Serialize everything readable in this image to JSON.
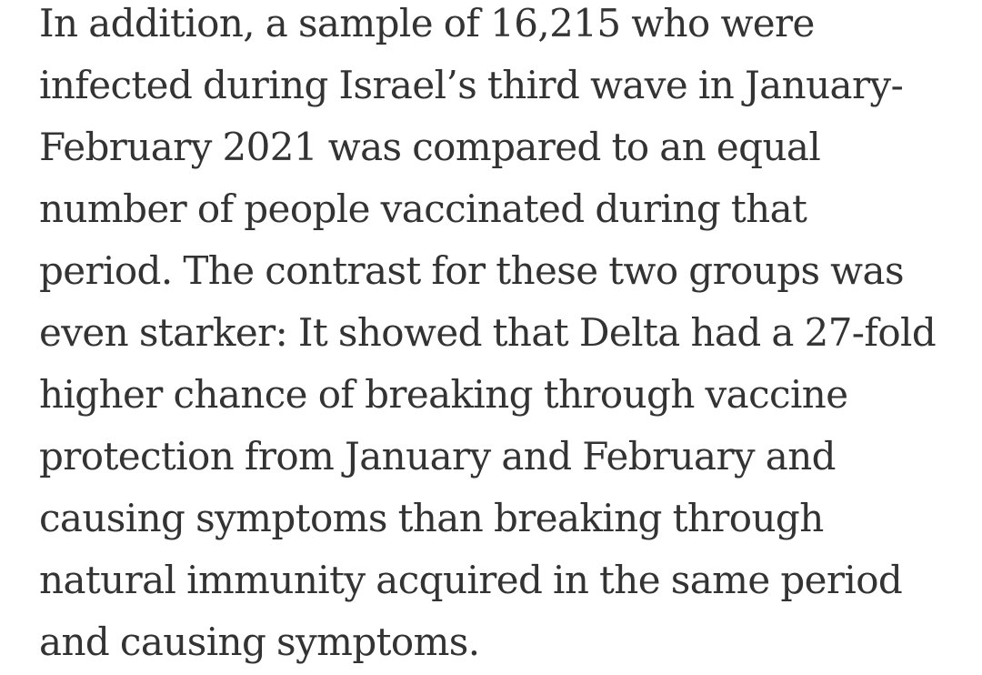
{
  "article": {
    "lines": [
      "In addition, a sample of 16,215 who were",
      "infected during Israel’s third wave in January-",
      "February 2021 was compared to an equal",
      "number of people vaccinated during that",
      "period. The contrast for these two groups was",
      "even starker: It showed that Delta had a 27-fold",
      "higher chance of breaking through vaccine",
      "protection from January and February and",
      "causing symptoms than breaking through",
      "natural immunity acquired in the same period",
      "and causing symptoms."
    ]
  }
}
